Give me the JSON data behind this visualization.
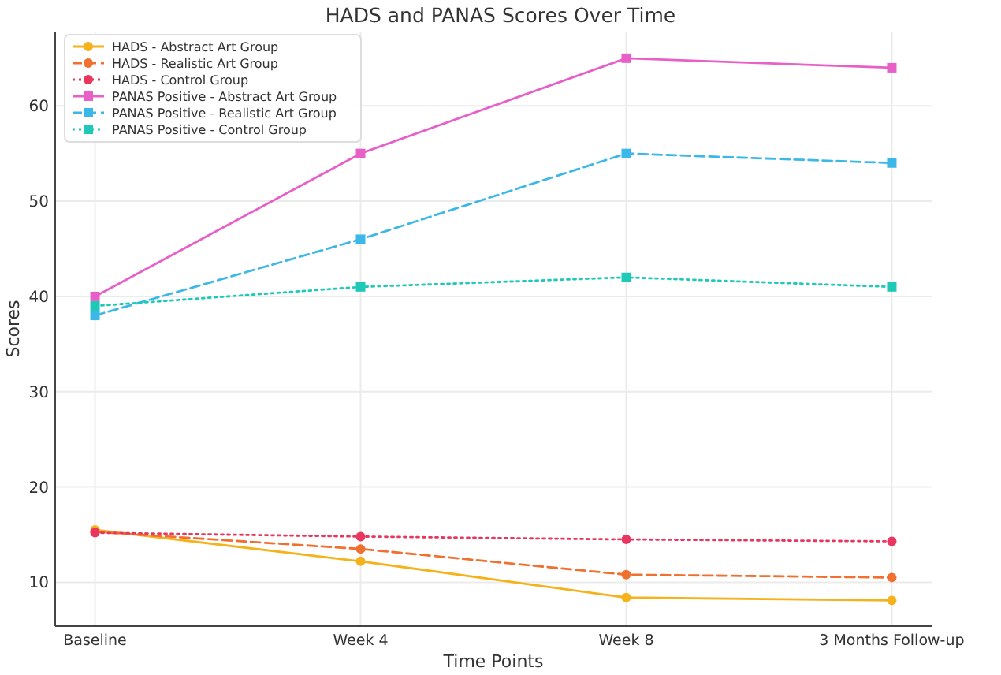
{
  "chart_data": {
    "type": "line",
    "title": "HADS and PANAS Scores Over Time",
    "xlabel": "Time Points",
    "ylabel": "Scores",
    "categories": [
      "Baseline",
      "Week 4",
      "Week 8",
      "3 Months Follow-up"
    ],
    "ylim": [
      5.4,
      67.8
    ],
    "yticks": [
      10,
      20,
      30,
      40,
      50,
      60
    ],
    "grid": true,
    "legend": "top left",
    "series": [
      {
        "name": "HADS - Abstract Art Group",
        "color": "#f5b21a",
        "marker": "circle",
        "line_style": "solid",
        "values": [
          15.5,
          12.2,
          8.4,
          8.1
        ]
      },
      {
        "name": "HADS - Realistic Art Group",
        "color": "#f07030",
        "marker": "circle",
        "line_style": "dashed",
        "values": [
          15.3,
          13.5,
          10.8,
          10.5
        ]
      },
      {
        "name": "HADS - Control Group",
        "color": "#e8365e",
        "marker": "circle",
        "line_style": "dotted",
        "values": [
          15.2,
          14.8,
          14.5,
          14.3
        ]
      },
      {
        "name": "PANAS Positive - Abstract Art Group",
        "color": "#e85fc8",
        "marker": "square",
        "line_style": "solid",
        "values": [
          40,
          55,
          65,
          64
        ]
      },
      {
        "name": "PANAS Positive - Realistic Art Group",
        "color": "#3bb8e8",
        "marker": "square",
        "line_style": "dashed",
        "values": [
          38,
          46,
          55,
          54
        ]
      },
      {
        "name": "PANAS Positive - Control Group",
        "color": "#1fc9b8",
        "marker": "square",
        "line_style": "dotted",
        "values": [
          39,
          41,
          42,
          41
        ]
      }
    ]
  }
}
